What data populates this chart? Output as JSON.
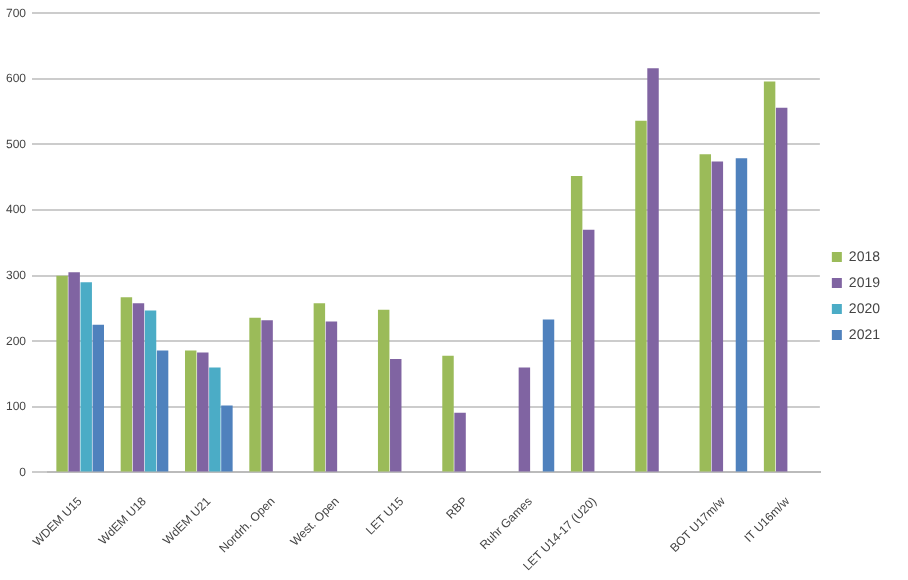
{
  "chart_data": {
    "type": "bar",
    "categories": [
      "WDEM U15",
      "WdEM U18",
      "WdEM U21",
      "Nordrh. Open",
      "West. Open",
      "LET U15",
      "RBP",
      "Ruhr Games",
      "LET U14-17 (U20)",
      null,
      "BOT U17m/w",
      "IT U16m/w"
    ],
    "series": [
      {
        "name": "2018",
        "color": "#9bbb59",
        "values": [
          300,
          267,
          186,
          236,
          258,
          248,
          178,
          null,
          452,
          536,
          485,
          596
        ]
      },
      {
        "name": "2019",
        "color": "#8064a2",
        "values": [
          305,
          258,
          183,
          232,
          230,
          173,
          91,
          160,
          370,
          616,
          474,
          556
        ]
      },
      {
        "name": "2020",
        "color": "#4bacc6",
        "values": [
          290,
          247,
          160,
          null,
          null,
          null,
          null,
          null,
          null,
          null,
          null,
          null
        ]
      },
      {
        "name": "2021",
        "color": "#4f81bd",
        "values": [
          225,
          186,
          102,
          null,
          null,
          null,
          null,
          233,
          null,
          null,
          479,
          null
        ]
      }
    ],
    "ylim": [
      0,
      700
    ],
    "yticks": [
      0,
      100,
      200,
      300,
      400,
      500,
      600,
      700
    ],
    "grid": "y",
    "legend": "right"
  }
}
